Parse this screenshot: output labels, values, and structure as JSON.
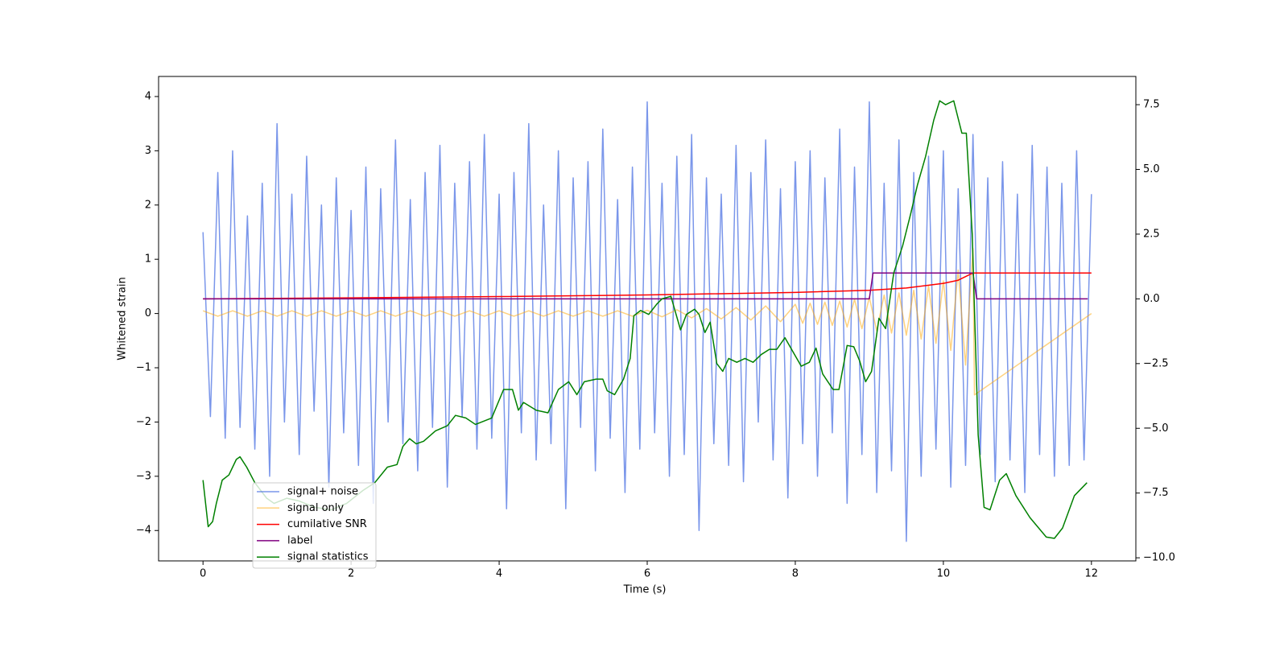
{
  "chart_data": {
    "type": "line",
    "xlabel": "Time (s)",
    "ylabel": "Whitened strain",
    "xlim": [
      -0.6,
      12.6
    ],
    "ylim": [
      -4.56,
      4.37
    ],
    "y2lim": [
      -10.12,
      8.59
    ],
    "xticks": [
      0,
      2,
      4,
      6,
      8,
      10,
      12
    ],
    "yticks": [
      {
        "value": -4,
        "label": "−4"
      },
      {
        "value": -3,
        "label": "−3"
      },
      {
        "value": -2,
        "label": "−2"
      },
      {
        "value": -1,
        "label": "−1"
      },
      0,
      1,
      2,
      3,
      4
    ],
    "y2ticks": [
      {
        "value": -10,
        "label": "−10.0"
      },
      {
        "value": -7.5,
        "label": "−7.5"
      },
      {
        "value": -5,
        "label": "−5.0"
      },
      {
        "value": -2.5,
        "label": "−2.5"
      },
      {
        "value": 0,
        "label": "0.0"
      },
      2.5,
      {
        "value": 5,
        "label": "5.0"
      },
      7.5
    ],
    "legend": "lower left",
    "series": [
      {
        "name": "signal+ noise",
        "color": "#4169e1",
        "alpha": 0.7,
        "x": [
          0,
          0.1,
          0.2,
          0.3,
          0.4,
          0.5,
          0.6,
          0.7,
          0.8,
          0.9,
          1,
          1.1,
          1.2,
          1.3,
          1.4,
          1.5,
          1.6,
          1.7,
          1.8,
          1.9,
          2,
          2.1,
          2.2,
          2.3,
          2.4,
          2.5,
          2.6,
          2.7,
          2.8,
          2.9,
          3,
          3.1,
          3.2,
          3.3,
          3.4,
          3.5,
          3.6,
          3.7,
          3.8,
          3.9,
          4,
          4.1,
          4.2,
          4.3,
          4.4,
          4.5,
          4.6,
          4.7,
          4.8,
          4.9,
          5,
          5.1,
          5.2,
          5.3,
          5.4,
          5.5,
          5.6,
          5.7,
          5.8,
          5.9,
          6,
          6.1,
          6.2,
          6.3,
          6.4,
          6.5,
          6.6,
          6.7,
          6.8,
          6.9,
          7,
          7.1,
          7.2,
          7.3,
          7.4,
          7.5,
          7.6,
          7.7,
          7.8,
          7.9,
          8,
          8.1,
          8.2,
          8.3,
          8.4,
          8.5,
          8.6,
          8.7,
          8.8,
          8.9,
          9,
          9.1,
          9.2,
          9.3,
          9.4,
          9.5,
          9.6,
          9.7,
          9.8,
          9.9,
          10,
          10.1,
          10.2,
          10.3,
          10.4,
          10.5,
          10.6,
          10.7,
          10.8,
          10.9,
          11,
          11.1,
          11.2,
          11.3,
          11.4,
          11.5,
          11.6,
          11.7,
          11.8,
          11.9,
          12
        ],
        "values": [
          1.5,
          -1.9,
          2.6,
          -2.3,
          3.0,
          -2.1,
          1.8,
          -2.5,
          2.4,
          -3.0,
          3.5,
          -2.0,
          2.2,
          -2.6,
          2.9,
          -1.8,
          2.0,
          -3.2,
          2.5,
          -2.2,
          1.9,
          -2.8,
          2.7,
          -3.5,
          2.3,
          -2.0,
          3.2,
          -2.4,
          2.1,
          -2.9,
          2.6,
          -2.1,
          3.1,
          -3.2,
          2.4,
          -1.9,
          2.8,
          -2.5,
          3.3,
          -2.3,
          2.2,
          -3.6,
          2.6,
          -2.2,
          3.5,
          -2.7,
          2.0,
          -2.4,
          3.0,
          -3.6,
          2.5,
          -2.1,
          2.8,
          -2.9,
          3.4,
          -2.3,
          2.1,
          -3.3,
          2.7,
          -2.5,
          3.9,
          -2.2,
          2.4,
          -3.0,
          2.9,
          -2.6,
          3.3,
          -4.0,
          2.5,
          -2.4,
          2.2,
          -2.8,
          3.1,
          -3.1,
          2.6,
          -2.0,
          3.2,
          -2.7,
          2.3,
          -3.4,
          2.8,
          -2.4,
          3.0,
          -3.0,
          2.5,
          -2.2,
          3.4,
          -3.5,
          2.7,
          -2.6,
          3.9,
          -3.3,
          2.4,
          -2.9,
          3.2,
          -4.2,
          2.6,
          -3.0,
          2.9,
          -2.5,
          3.0,
          -3.2,
          2.3,
          -2.8,
          3.3,
          -2.6,
          2.5,
          -3.1,
          2.8,
          -2.7,
          2.2,
          -3.3,
          3.1,
          -2.6,
          2.7,
          -3.0,
          2.4,
          -2.8,
          3.0,
          -2.7,
          2.2
        ]
      },
      {
        "name": "signal only",
        "color": "#ffa500",
        "alpha": 0.5,
        "x": [
          0,
          0.2,
          0.4,
          0.6,
          0.8,
          1,
          1.2,
          1.4,
          1.6,
          1.8,
          2,
          2.2,
          2.4,
          2.6,
          2.8,
          3,
          3.2,
          3.4,
          3.6,
          3.8,
          4,
          4.2,
          4.4,
          4.6,
          4.8,
          5,
          5.2,
          5.4,
          5.6,
          5.8,
          6,
          6.2,
          6.4,
          6.6,
          6.8,
          7,
          7.2,
          7.4,
          7.6,
          7.8,
          8,
          8.1,
          8.2,
          8.3,
          8.4,
          8.5,
          8.6,
          8.7,
          8.8,
          8.9,
          9,
          9.1,
          9.2,
          9.3,
          9.4,
          9.5,
          9.6,
          9.7,
          9.8,
          9.9,
          10,
          10.1,
          10.2,
          10.3,
          10.4,
          10.42,
          12
        ],
        "values": [
          0.05,
          -0.05,
          0.05,
          -0.05,
          0.05,
          -0.05,
          0.05,
          -0.05,
          0.05,
          -0.05,
          0.05,
          -0.05,
          0.05,
          -0.05,
          0.05,
          -0.05,
          0.05,
          -0.05,
          0.05,
          -0.05,
          0.05,
          -0.05,
          0.05,
          -0.05,
          0.05,
          -0.05,
          0.05,
          -0.05,
          0.05,
          -0.05,
          0.06,
          -0.06,
          0.07,
          -0.08,
          0.09,
          -0.1,
          0.11,
          -0.12,
          0.14,
          -0.15,
          0.17,
          -0.18,
          0.19,
          -0.2,
          0.21,
          -0.22,
          0.23,
          -0.25,
          0.26,
          -0.28,
          0.3,
          -0.32,
          0.34,
          -0.36,
          0.38,
          -0.4,
          0.43,
          -0.47,
          0.51,
          -0.55,
          0.6,
          -0.68,
          0.8,
          -0.95,
          1.2,
          -1.5,
          0
        ]
      },
      {
        "name": "cumilative SNR",
        "color": "#ff0000",
        "axis": "y2",
        "x": [
          0,
          2,
          4,
          6,
          8,
          9,
          9.5,
          10,
          10.2,
          10.4,
          12
        ],
        "values": [
          0,
          0.04,
          0.09,
          0.15,
          0.25,
          0.33,
          0.42,
          0.6,
          0.72,
          1.0,
          1.0
        ]
      },
      {
        "name": "label",
        "color": "#800080",
        "axis": "y2",
        "x": [
          0,
          9.0,
          9.05,
          10.4,
          10.45,
          11.95
        ],
        "values": [
          0,
          0,
          1,
          1,
          0,
          0
        ]
      },
      {
        "name": "signal statistics",
        "color": "#008000",
        "axis": "y2",
        "x": [
          0,
          0.07,
          0.13,
          0.18,
          0.26,
          0.35,
          0.45,
          0.5,
          0.59,
          0.7,
          0.86,
          0.96,
          1.13,
          1.29,
          1.51,
          1.73,
          1.94,
          2.16,
          2.32,
          2.49,
          2.62,
          2.7,
          2.79,
          2.88,
          2.98,
          3.14,
          3.3,
          3.41,
          3.55,
          3.68,
          3.9,
          4.06,
          4.18,
          4.26,
          4.33,
          4.5,
          4.66,
          4.8,
          4.94,
          5.05,
          5.15,
          5.31,
          5.4,
          5.46,
          5.56,
          5.68,
          5.77,
          5.82,
          5.91,
          6.02,
          6.13,
          6.2,
          6.32,
          6.45,
          6.53,
          6.64,
          6.7,
          6.78,
          6.85,
          6.94,
          7.02,
          7.1,
          7.21,
          7.32,
          7.43,
          7.54,
          7.65,
          7.75,
          7.86,
          7.97,
          8.08,
          8.19,
          8.28,
          8.37,
          8.51,
          8.59,
          8.7,
          8.79,
          8.87,
          8.95,
          9.03,
          9.13,
          9.22,
          9.33,
          9.45,
          9.56,
          9.65,
          9.76,
          9.87,
          9.95,
          10.03,
          10.14,
          10.25,
          10.31,
          10.39,
          10.47,
          10.55,
          10.63,
          10.76,
          10.85,
          10.98,
          11.17,
          11.39,
          11.5,
          11.61,
          11.77,
          11.94
        ],
        "values": [
          -7.0,
          -8.8,
          -8.6,
          -7.9,
          -7.0,
          -6.8,
          -6.2,
          -6.1,
          -6.5,
          -7.1,
          -7.7,
          -7.9,
          -7.7,
          -7.8,
          -8.05,
          -8.15,
          -7.9,
          -7.4,
          -7.1,
          -6.5,
          -6.4,
          -5.7,
          -5.4,
          -5.6,
          -5.5,
          -5.1,
          -4.9,
          -4.5,
          -4.6,
          -4.85,
          -4.6,
          -3.5,
          -3.5,
          -4.3,
          -4.0,
          -4.3,
          -4.4,
          -3.5,
          -3.2,
          -3.7,
          -3.2,
          -3.1,
          -3.1,
          -3.55,
          -3.7,
          -3.1,
          -2.3,
          -0.65,
          -0.45,
          -0.6,
          -0.2,
          0.0,
          0.1,
          -1.2,
          -0.6,
          -0.4,
          -0.6,
          -1.3,
          -0.9,
          -2.5,
          -2.8,
          -2.3,
          -2.45,
          -2.3,
          -2.45,
          -2.15,
          -1.95,
          -1.95,
          -1.5,
          -2.05,
          -2.6,
          -2.45,
          -1.9,
          -2.9,
          -3.5,
          -3.5,
          -1.8,
          -1.85,
          -2.4,
          -3.2,
          -2.8,
          -0.75,
          -1.15,
          1.0,
          2.05,
          3.3,
          4.4,
          5.5,
          6.9,
          7.65,
          7.5,
          7.65,
          6.4,
          6.4,
          2.5,
          -5.25,
          -8.05,
          -8.15,
          -7.0,
          -6.75,
          -7.6,
          -8.45,
          -9.2,
          -9.25,
          -8.85,
          -7.6,
          -7.1
        ]
      }
    ]
  }
}
